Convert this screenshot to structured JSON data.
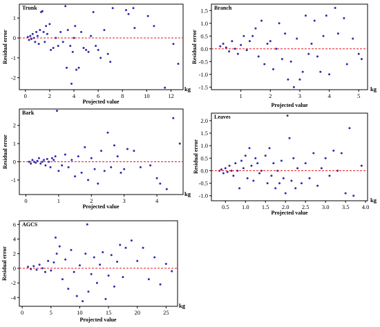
{
  "chart_data": [
    {
      "id": "trunk",
      "type": "scatter",
      "title": "Trunk",
      "xlabel": "Projected value",
      "ylabel": "Residual error",
      "unit": "kg",
      "xlim": [
        -0.5,
        13
      ],
      "ylim": [
        -2.6,
        1.7
      ],
      "xticks": [
        0,
        2,
        4,
        6,
        8,
        10,
        12
      ],
      "yticks": [
        -2,
        -1,
        0,
        1
      ],
      "reference_line": 0,
      "colors": {
        "points": "#2e2ab0",
        "reference": "#e8151b"
      },
      "points": [
        [
          0.2,
          0.05
        ],
        [
          0.3,
          -0.1
        ],
        [
          0.4,
          0.1
        ],
        [
          0.5,
          -0.05
        ],
        [
          0.6,
          0.2
        ],
        [
          0.7,
          0.0
        ],
        [
          0.8,
          -0.2
        ],
        [
          0.9,
          0.3
        ],
        [
          1.0,
          0.1
        ],
        [
          1.1,
          -0.3
        ],
        [
          1.2,
          0.4
        ],
        [
          1.3,
          1.3
        ],
        [
          1.4,
          1.35
        ],
        [
          1.5,
          0.3
        ],
        [
          1.6,
          -0.2
        ],
        [
          1.7,
          0.6
        ],
        [
          1.8,
          0.2
        ],
        [
          2.0,
          0.7
        ],
        [
          2.1,
          -0.6
        ],
        [
          2.3,
          -0.5
        ],
        [
          2.5,
          0.0
        ],
        [
          2.7,
          -0.4
        ],
        [
          2.9,
          0.3
        ],
        [
          3.1,
          -0.2
        ],
        [
          3.3,
          1.6
        ],
        [
          3.4,
          -1.5
        ],
        [
          3.5,
          0.4
        ],
        [
          3.7,
          -0.4
        ],
        [
          3.8,
          -2.3
        ],
        [
          3.9,
          -0.7
        ],
        [
          4.0,
          0.0
        ],
        [
          4.1,
          0.6
        ],
        [
          4.2,
          -1.6
        ],
        [
          4.4,
          -1.5
        ],
        [
          4.6,
          0.3
        ],
        [
          4.8,
          -0.5
        ],
        [
          5.0,
          -0.6
        ],
        [
          5.2,
          -0.7
        ],
        [
          5.4,
          0.1
        ],
        [
          5.6,
          1.3
        ],
        [
          5.8,
          -0.4
        ],
        [
          6.0,
          -0.6
        ],
        [
          6.2,
          -1.0
        ],
        [
          6.5,
          0.4
        ],
        [
          6.8,
          -0.8
        ],
        [
          7.0,
          -1.2
        ],
        [
          7.2,
          1.5
        ],
        [
          8.3,
          1.4
        ],
        [
          8.5,
          1.2
        ],
        [
          8.9,
          1.5
        ],
        [
          9.0,
          0.5
        ],
        [
          10.1,
          1.1
        ],
        [
          10.6,
          0.6
        ],
        [
          11.5,
          -2.5
        ],
        [
          12.2,
          -0.3
        ],
        [
          12.6,
          -1.3
        ]
      ]
    },
    {
      "id": "branch",
      "type": "scatter",
      "title": "Branch",
      "xlabel": "Projected value",
      "ylabel": "Residual error",
      "unit": "kg",
      "xlim": [
        0,
        5.3
      ],
      "ylim": [
        -1.6,
        1.75
      ],
      "xticks": [
        1,
        2,
        3,
        4,
        5
      ],
      "yticks": [
        -1.5,
        -1.0,
        -0.5,
        0.0,
        0.5,
        1.0,
        1.5
      ],
      "reference_line": 0,
      "colors": {
        "points": "#2e2ab0",
        "reference": "#e8151b"
      },
      "points": [
        [
          0.3,
          0.1
        ],
        [
          0.4,
          0.2
        ],
        [
          0.5,
          0.05
        ],
        [
          0.6,
          -0.1
        ],
        [
          0.7,
          0.3
        ],
        [
          0.8,
          0.0
        ],
        [
          0.9,
          -0.2
        ],
        [
          1.0,
          0.15
        ],
        [
          1.1,
          0.5
        ],
        [
          1.2,
          -0.05
        ],
        [
          1.3,
          0.3
        ],
        [
          1.4,
          0.5
        ],
        [
          1.5,
          0.8
        ],
        [
          1.6,
          -0.3
        ],
        [
          1.7,
          1.1
        ],
        [
          1.8,
          -0.6
        ],
        [
          1.9,
          0.2
        ],
        [
          2.0,
          0.3
        ],
        [
          2.1,
          -0.8
        ],
        [
          2.2,
          0.0
        ],
        [
          2.3,
          1.0
        ],
        [
          2.4,
          -0.4
        ],
        [
          2.5,
          0.6
        ],
        [
          2.6,
          -1.2
        ],
        [
          2.7,
          -0.5
        ],
        [
          2.8,
          -1.5
        ],
        [
          2.9,
          0.4
        ],
        [
          3.0,
          -1.2
        ],
        [
          3.1,
          -0.9
        ],
        [
          3.2,
          1.3
        ],
        [
          3.3,
          -0.2
        ],
        [
          3.4,
          0.2
        ],
        [
          3.5,
          1.1
        ],
        [
          3.6,
          -0.3
        ],
        [
          3.7,
          -0.9
        ],
        [
          3.8,
          0.5
        ],
        [
          3.9,
          1.3
        ],
        [
          4.0,
          -1.0
        ],
        [
          4.2,
          1.6
        ],
        [
          4.3,
          0.6
        ],
        [
          4.5,
          1.2
        ],
        [
          4.6,
          -0.6
        ],
        [
          4.8,
          0.4
        ],
        [
          5.0,
          -0.2
        ],
        [
          5.1,
          -0.4
        ]
      ]
    },
    {
      "id": "bark",
      "type": "scatter",
      "title": "Bark",
      "xlabel": "Projected value",
      "ylabel": "Residual error",
      "unit": "kg",
      "xlim": [
        -0.2,
        4.8
      ],
      "ylim": [
        -1.8,
        2.9
      ],
      "xticks": [
        0,
        1,
        2,
        3,
        4
      ],
      "yticks": [
        -1,
        0,
        1,
        2
      ],
      "reference_line": 0,
      "colors": {
        "points": "#2e2ab0",
        "reference": "#e8151b"
      },
      "points": [
        [
          0.1,
          0.0
        ],
        [
          0.15,
          -0.1
        ],
        [
          0.2,
          0.1
        ],
        [
          0.25,
          0.0
        ],
        [
          0.3,
          -0.05
        ],
        [
          0.35,
          0.05
        ],
        [
          0.4,
          0.2
        ],
        [
          0.45,
          -0.1
        ],
        [
          0.5,
          0.0
        ],
        [
          0.55,
          0.1
        ],
        [
          0.6,
          -0.2
        ],
        [
          0.65,
          0.15
        ],
        [
          0.7,
          0.0
        ],
        [
          0.75,
          -0.3
        ],
        [
          0.8,
          0.2
        ],
        [
          0.85,
          0.1
        ],
        [
          0.9,
          0.3
        ],
        [
          0.95,
          2.8
        ],
        [
          1.0,
          -0.5
        ],
        [
          1.1,
          -0.2
        ],
        [
          1.2,
          0.4
        ],
        [
          1.3,
          -0.3
        ],
        [
          1.4,
          0.1
        ],
        [
          1.5,
          -0.8
        ],
        [
          1.6,
          0.3
        ],
        [
          1.7,
          -0.6
        ],
        [
          1.8,
          0.8
        ],
        [
          1.9,
          -1.0
        ],
        [
          2.0,
          0.2
        ],
        [
          2.1,
          -0.4
        ],
        [
          2.2,
          -1.2
        ],
        [
          2.3,
          0.6
        ],
        [
          2.4,
          -0.5
        ],
        [
          2.5,
          1.6
        ],
        [
          2.6,
          -0.3
        ],
        [
          2.7,
          0.9
        ],
        [
          2.8,
          0.3
        ],
        [
          2.9,
          -0.6
        ],
        [
          3.0,
          -0.4
        ],
        [
          3.1,
          0.7
        ],
        [
          3.3,
          0.6
        ],
        [
          3.5,
          -0.3
        ],
        [
          3.8,
          -0.2
        ],
        [
          4.0,
          -0.9
        ],
        [
          4.1,
          -1.2
        ],
        [
          4.3,
          -1.5
        ],
        [
          4.5,
          2.4
        ],
        [
          4.7,
          1.0
        ]
      ]
    },
    {
      "id": "leaves",
      "type": "scatter",
      "title": "Leaves",
      "xlabel": "Projected value",
      "ylabel": "Residual error",
      "unit": "kg",
      "xlim": [
        0.15,
        4.05
      ],
      "ylim": [
        -1.2,
        2.3
      ],
      "xticks": [
        0.5,
        1.0,
        1.5,
        2.0,
        2.5,
        3.0,
        3.5,
        4.0
      ],
      "yticks": [
        -1.0,
        -0.5,
        0.0,
        0.5,
        1.0,
        1.5,
        2.0
      ],
      "reference_line": 0,
      "colors": {
        "points": "#2e2ab0",
        "reference": "#e8151b"
      },
      "points": [
        [
          0.35,
          0.0
        ],
        [
          0.4,
          0.05
        ],
        [
          0.45,
          -0.1
        ],
        [
          0.5,
          0.1
        ],
        [
          0.55,
          -0.05
        ],
        [
          0.6,
          0.2
        ],
        [
          0.65,
          0.0
        ],
        [
          0.7,
          -0.2
        ],
        [
          0.75,
          0.3
        ],
        [
          0.8,
          0.0
        ],
        [
          0.85,
          -0.7
        ],
        [
          0.9,
          0.4
        ],
        [
          0.95,
          0.1
        ],
        [
          1.0,
          0.6
        ],
        [
          1.05,
          -0.3
        ],
        [
          1.1,
          0.9
        ],
        [
          1.15,
          0.2
        ],
        [
          1.2,
          -0.4
        ],
        [
          1.25,
          0.5
        ],
        [
          1.3,
          0.3
        ],
        [
          1.35,
          -0.1
        ],
        [
          1.4,
          0.0
        ],
        [
          1.5,
          0.6
        ],
        [
          1.55,
          -0.5
        ],
        [
          1.6,
          0.9
        ],
        [
          1.65,
          -0.2
        ],
        [
          1.7,
          0.3
        ],
        [
          1.75,
          -0.7
        ],
        [
          1.8,
          0.0
        ],
        [
          1.85,
          -0.5
        ],
        [
          1.9,
          0.4
        ],
        [
          1.95,
          -0.3
        ],
        [
          2.0,
          -0.9
        ],
        [
          2.05,
          2.2
        ],
        [
          2.1,
          1.3
        ],
        [
          2.15,
          -0.4
        ],
        [
          2.2,
          0.5
        ],
        [
          2.25,
          -0.7
        ],
        [
          2.3,
          0.1
        ],
        [
          2.4,
          -0.5
        ],
        [
          2.5,
          0.3
        ],
        [
          2.6,
          -0.3
        ],
        [
          2.7,
          0.7
        ],
        [
          2.8,
          -0.6
        ],
        [
          2.9,
          0.1
        ],
        [
          3.0,
          0.5
        ],
        [
          3.1,
          -0.2
        ],
        [
          3.2,
          0.8
        ],
        [
          3.3,
          0.0
        ],
        [
          3.4,
          0.7
        ],
        [
          3.5,
          -0.9
        ],
        [
          3.6,
          1.7
        ],
        [
          3.7,
          -1.0
        ],
        [
          3.9,
          0.2
        ]
      ]
    },
    {
      "id": "agcs",
      "type": "scatter",
      "title": "AGCS",
      "xlabel": "Projected value",
      "ylabel": "Residual error",
      "unit": "kg",
      "xlim": [
        -0.5,
        27
      ],
      "ylim": [
        -5.2,
        6.5
      ],
      "xticks": [
        0,
        5,
        10,
        15,
        20,
        25
      ],
      "yticks": [
        -4,
        -2,
        0,
        2,
        4,
        6
      ],
      "reference_line": 0,
      "colors": {
        "points": "#2e2ab0",
        "reference": "#e8151b"
      },
      "points": [
        [
          1.0,
          0.2
        ],
        [
          1.5,
          -0.1
        ],
        [
          2.0,
          0.3
        ],
        [
          2.5,
          -0.2
        ],
        [
          3.0,
          0.5
        ],
        [
          3.5,
          0.0
        ],
        [
          4.0,
          -0.5
        ],
        [
          4.5,
          1.0
        ],
        [
          5.0,
          -0.3
        ],
        [
          5.5,
          0.8
        ],
        [
          5.8,
          4.2
        ],
        [
          6.0,
          2.0
        ],
        [
          6.5,
          3.0
        ],
        [
          7.0,
          -1.5
        ],
        [
          7.5,
          1.2
        ],
        [
          8.0,
          -2.8
        ],
        [
          8.5,
          2.5
        ],
        [
          9.0,
          -0.5
        ],
        [
          9.5,
          -3.8
        ],
        [
          10.0,
          0.4
        ],
        [
          10.5,
          -4.5
        ],
        [
          11.0,
          2.0
        ],
        [
          11.3,
          6.0
        ],
        [
          11.5,
          -3.2
        ],
        [
          12.0,
          -0.8
        ],
        [
          12.5,
          1.5
        ],
        [
          13.0,
          -2.0
        ],
        [
          13.5,
          0.5
        ],
        [
          14.0,
          2.2
        ],
        [
          14.5,
          -4.2
        ],
        [
          15.0,
          -1.0
        ],
        [
          15.5,
          1.8
        ],
        [
          16.0,
          -2.5
        ],
        [
          16.5,
          0.9
        ],
        [
          17.0,
          3.2
        ],
        [
          17.5,
          -1.2
        ],
        [
          18.0,
          2.8
        ],
        [
          19.0,
          3.8
        ],
        [
          20.0,
          1.0
        ],
        [
          21.0,
          2.8
        ],
        [
          22.0,
          -1.5
        ],
        [
          23.0,
          1.5
        ],
        [
          24.0,
          -2.2
        ],
        [
          25.0,
          0.6
        ],
        [
          26.0,
          -0.4
        ]
      ]
    }
  ]
}
